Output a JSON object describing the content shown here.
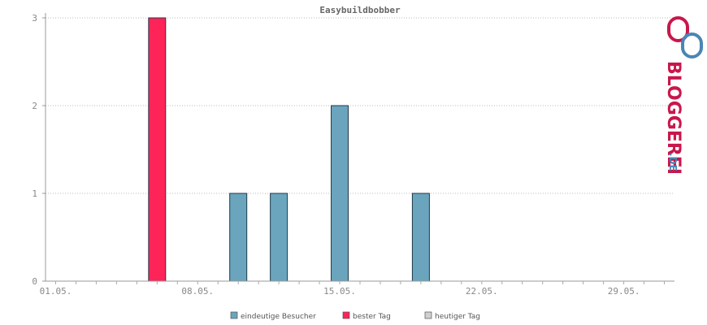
{
  "chart_data": {
    "type": "bar",
    "title": "Easybuildbobber",
    "ylim": [
      0,
      3
    ],
    "y_ticks": [
      0,
      1,
      2,
      3
    ],
    "x_ticks": [
      "01.05.",
      "08.05.",
      "15.05.",
      "22.05.",
      "29.05."
    ],
    "x_tick_days": [
      1,
      8,
      15,
      22,
      29
    ],
    "days_range": [
      0.5,
      31.5
    ],
    "grid": true,
    "legend_position": "bottom",
    "series": [
      {
        "name": "eindeutige Besucher",
        "color": "#6aa5bd",
        "points": [
          {
            "day": 10,
            "value": 1
          },
          {
            "day": 12,
            "value": 1
          },
          {
            "day": 15,
            "value": 2
          },
          {
            "day": 19,
            "value": 1
          }
        ]
      },
      {
        "name": "bester Tag",
        "color": "#ff2458",
        "points": [
          {
            "day": 6,
            "value": 3
          }
        ]
      },
      {
        "name": "heutiger Tag",
        "color": "#d0d0d0",
        "points": []
      }
    ]
  },
  "brand": {
    "name": "BLOGGEREI",
    "tld": ".DE",
    "colors": {
      "primary": "#c8174c",
      "secondary": "#4a86b4"
    }
  }
}
